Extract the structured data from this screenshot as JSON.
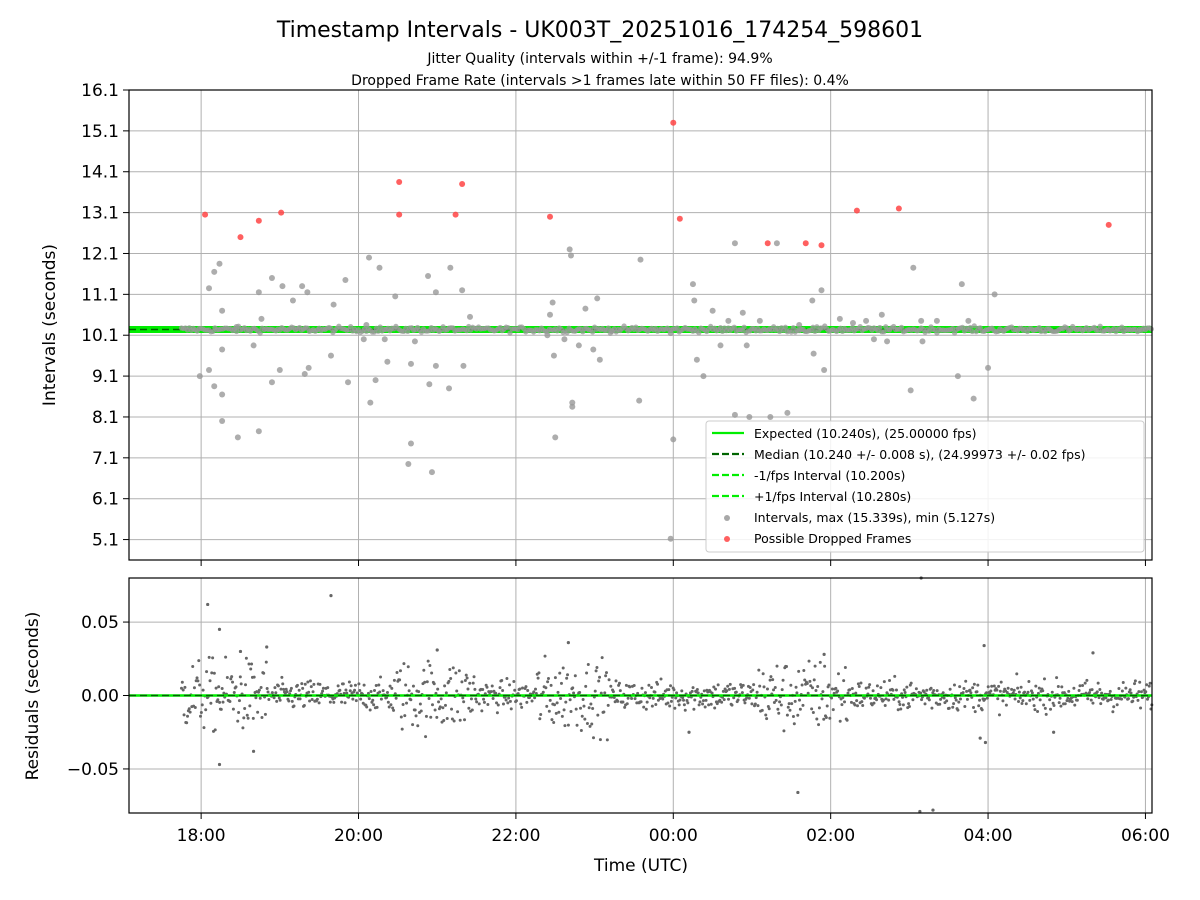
{
  "title": "Timestamp Intervals - UK003T_20251016_174254_598601",
  "subtitle_1": "Jitter Quality (intervals within +/-1 frame): 94.9%",
  "subtitle_2": "Dropped Frame Rate (intervals >1 frames late within 50 FF files): 0.4%",
  "colors": {
    "expected": "#00ee00",
    "median": "#006400",
    "interval_points": "#999999",
    "dropped_points": "#ff4444",
    "residual_points": "#666666",
    "grid": "#b0b0b0"
  },
  "chart_data": [
    {
      "type": "scatter",
      "panel": "intervals",
      "ylabel": "Intervals (seconds)",
      "xlabel": "",
      "ylim": [
        4.6,
        16.1
      ],
      "xlim": [
        "2025-10-16 17:05",
        "2025-10-17 06:05"
      ],
      "grid": true,
      "legend_position": "lower-right",
      "yticks": [
        "5.1",
        "6.1",
        "7.1",
        "8.1",
        "9.1",
        "10.1",
        "11.1",
        "12.1",
        "13.1",
        "14.1",
        "15.1",
        "16.1"
      ],
      "xticks": [
        "18:00",
        "20:00",
        "22:00",
        "00:00",
        "02:00",
        "04:00",
        "06:00"
      ],
      "reference_lines": [
        {
          "name": "Expected (10.240s), (25.00000 fps)",
          "y": 10.24,
          "style": "solid",
          "color": "#00ee00"
        },
        {
          "name": "Median (10.240 +/- 0.008 s), (24.99973 +/- 0.02 fps)",
          "y": 10.24,
          "style": "dashed",
          "color": "#006400"
        },
        {
          "name": "-1/fps Interval (10.200s)",
          "y": 10.2,
          "style": "dashed",
          "color": "#00ee00"
        },
        {
          "name": "+1/fps Interval (10.280s)",
          "y": 10.28,
          "style": "dashed",
          "color": "#00ee00"
        }
      ],
      "series": [
        {
          "name": "Intervals, max (15.339s), min (5.127s)",
          "color": "#999999",
          "points": [
            [
              "17:59",
              9.1
            ],
            [
              "18:06",
              11.25
            ],
            [
              "18:06",
              9.25
            ],
            [
              "18:10",
              11.65
            ],
            [
              "18:10",
              8.85
            ],
            [
              "18:14",
              11.85
            ],
            [
              "18:16",
              8.65
            ],
            [
              "18:16",
              8.0
            ],
            [
              "18:16",
              9.75
            ],
            [
              "18:16",
              10.7
            ],
            [
              "18:27",
              10.3
            ],
            [
              "18:28",
              7.6
            ],
            [
              "18:40",
              9.85
            ],
            [
              "18:44",
              7.75
            ],
            [
              "18:44",
              11.15
            ],
            [
              "18:46",
              10.5
            ],
            [
              "18:54",
              11.5
            ],
            [
              "18:54",
              8.95
            ],
            [
              "19:00",
              9.25
            ],
            [
              "19:02",
              11.3
            ],
            [
              "19:10",
              10.95
            ],
            [
              "19:17",
              11.3
            ],
            [
              "19:19",
              9.15
            ],
            [
              "19:21",
              11.15
            ],
            [
              "19:22",
              9.3
            ],
            [
              "19:39",
              9.6
            ],
            [
              "19:41",
              10.85
            ],
            [
              "19:50",
              11.45
            ],
            [
              "19:52",
              8.95
            ],
            [
              "20:04",
              10.0
            ],
            [
              "20:06",
              10.35
            ],
            [
              "20:08",
              12.0
            ],
            [
              "20:09",
              8.45
            ],
            [
              "20:13",
              9.0
            ],
            [
              "20:16",
              11.75
            ],
            [
              "20:20",
              10.0
            ],
            [
              "20:22",
              9.45
            ],
            [
              "20:28",
              11.05
            ],
            [
              "20:38",
              6.95
            ],
            [
              "20:40",
              7.45
            ],
            [
              "20:40",
              9.4
            ],
            [
              "20:43",
              9.95
            ],
            [
              "20:53",
              11.55
            ],
            [
              "20:54",
              8.9
            ],
            [
              "20:56",
              6.75
            ],
            [
              "20:59",
              11.15
            ],
            [
              "20:59",
              9.35
            ],
            [
              "21:09",
              8.8
            ],
            [
              "21:10",
              11.75
            ],
            [
              "21:19",
              11.2
            ],
            [
              "21:20",
              9.35
            ],
            [
              "21:25",
              10.55
            ],
            [
              "22:24",
              10.1
            ],
            [
              "22:26",
              10.6
            ],
            [
              "22:28",
              10.9
            ],
            [
              "22:29",
              9.6
            ],
            [
              "22:30",
              7.6
            ],
            [
              "22:37",
              10.0
            ],
            [
              "22:41",
              12.2
            ],
            [
              "22:42",
              12.05
            ],
            [
              "22:43",
              8.35
            ],
            [
              "22:43",
              8.45
            ],
            [
              "22:48",
              9.85
            ],
            [
              "22:53",
              10.75
            ],
            [
              "22:59",
              9.75
            ],
            [
              "23:02",
              11.0
            ],
            [
              "23:04",
              9.5
            ],
            [
              "23:13",
              10.2
            ],
            [
              "23:34",
              8.5
            ],
            [
              "23:35",
              11.95
            ],
            [
              "23:58",
              5.12
            ],
            [
              "23:58",
              10.15
            ],
            [
              "00:00",
              7.55
            ],
            [
              "00:15",
              11.35
            ],
            [
              "00:16",
              10.95
            ],
            [
              "00:18",
              9.5
            ],
            [
              "00:23",
              9.1
            ],
            [
              "00:30",
              10.7
            ],
            [
              "00:36",
              9.85
            ],
            [
              "00:42",
              10.45
            ],
            [
              "00:47",
              12.35
            ],
            [
              "00:47",
              8.15
            ],
            [
              "00:53",
              10.65
            ],
            [
              "00:56",
              9.85
            ],
            [
              "00:58",
              8.1
            ],
            [
              "01:06",
              10.45
            ],
            [
              "01:14",
              8.1
            ],
            [
              "01:19",
              12.35
            ],
            [
              "01:27",
              8.2
            ],
            [
              "01:36",
              10.35
            ],
            [
              "01:46",
              10.95
            ],
            [
              "01:47",
              9.65
            ],
            [
              "01:53",
              11.2
            ],
            [
              "01:55",
              9.25
            ],
            [
              "02:07",
              10.5
            ],
            [
              "02:17",
              10.4
            ],
            [
              "02:27",
              10.45
            ],
            [
              "02:33",
              10.0
            ],
            [
              "02:39",
              10.6
            ],
            [
              "02:43",
              9.95
            ],
            [
              "03:01",
              8.75
            ],
            [
              "03:03",
              11.75
            ],
            [
              "03:09",
              10.45
            ],
            [
              "03:10",
              9.95
            ],
            [
              "03:21",
              10.45
            ],
            [
              "03:37",
              9.1
            ],
            [
              "03:40",
              11.35
            ],
            [
              "03:45",
              10.45
            ],
            [
              "03:49",
              8.55
            ],
            [
              "04:00",
              9.3
            ],
            [
              "04:05",
              11.1
            ]
          ]
        },
        {
          "name": "Possible Dropped Frames",
          "color": "#ff4444",
          "points": [
            [
              "18:03",
              13.05
            ],
            [
              "18:30",
              12.5
            ],
            [
              "18:44",
              12.9
            ],
            [
              "19:01",
              13.1
            ],
            [
              "20:31",
              13.85
            ],
            [
              "20:31",
              13.05
            ],
            [
              "21:14",
              13.05
            ],
            [
              "21:19",
              13.8
            ],
            [
              "22:26",
              13.0
            ],
            [
              "00:00",
              15.3
            ],
            [
              "00:05",
              12.95
            ],
            [
              "01:12",
              12.35
            ],
            [
              "01:41",
              12.35
            ],
            [
              "01:53",
              12.3
            ],
            [
              "02:20",
              13.15
            ],
            [
              "02:52",
              13.2
            ],
            [
              "05:32",
              12.8
            ]
          ]
        }
      ]
    },
    {
      "type": "scatter",
      "panel": "residuals",
      "xlabel": "Time (UTC)",
      "ylabel": "Residuals (seconds)",
      "ylim": [
        -0.08,
        0.08
      ],
      "xlim": [
        "2025-10-16 17:05",
        "2025-10-17 06:05"
      ],
      "grid": true,
      "yticks": [
        "0.05",
        "0.00",
        "−0.05"
      ],
      "xticks": [
        "18:00",
        "20:00",
        "22:00",
        "00:00",
        "02:00",
        "04:00",
        "06:00"
      ],
      "reference_lines": [
        {
          "name": "Expected",
          "y": 0.0,
          "style": "solid",
          "color": "#00ee00"
        },
        {
          "name": "Median",
          "y": 0.0,
          "style": "dashed",
          "color": "#006400"
        }
      ],
      "series": [
        {
          "color": "#666666",
          "points": [
            [
              "18:05",
              0.062
            ],
            [
              "18:14",
              0.045
            ],
            [
              "18:14",
              -0.047
            ],
            [
              "18:40",
              -0.038
            ],
            [
              "19:39",
              0.068
            ],
            [
              "01:35",
              -0.066
            ],
            [
              "03:09",
              0.08
            ],
            [
              "03:08",
              -0.079
            ],
            [
              "03:18",
              -0.078
            ],
            [
              "03:57",
              0.034
            ],
            [
              "03:54",
              -0.029
            ],
            [
              "03:58",
              -0.032
            ],
            [
              "18:30",
              0.03
            ],
            [
              "18:50",
              0.033
            ],
            [
              "22:40",
              0.036
            ],
            [
              "21:00",
              0.031
            ],
            [
              "01:55",
              0.028
            ],
            [
              "05:20",
              0.029
            ],
            [
              "00:12",
              -0.025
            ],
            [
              "04:50",
              -0.025
            ]
          ]
        }
      ]
    }
  ]
}
